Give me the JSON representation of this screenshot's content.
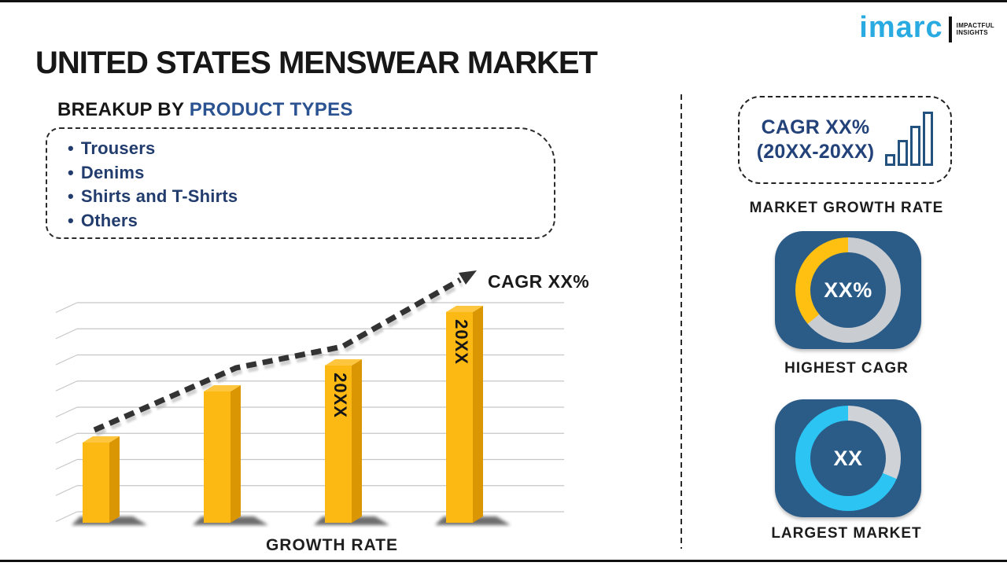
{
  "header": {
    "title": "UNITED STATES MENSWEAR MARKET",
    "logo": {
      "brand": "imarc",
      "tagline": [
        "IMPACTFUL",
        "INSIGHTS"
      ],
      "brand_color": "#29ABE2"
    }
  },
  "breakup": {
    "heading": {
      "prefix": "BREAKUP BY",
      "accent": "PRODUCT TYPES"
    },
    "accent_color": "#2B5291",
    "items_color": "#223C6D",
    "items": [
      "Trousers",
      "Denims",
      "Shirts and T-Shirts",
      "Others"
    ]
  },
  "chart_data": {
    "type": "bar",
    "title": "",
    "xlabel": "GROWTH RATE",
    "ylabel": "",
    "categories": [
      "",
      "",
      "20XX",
      "20XX"
    ],
    "bar_labels": [
      "",
      "",
      "20XX",
      "20XX"
    ],
    "values": [
      102,
      167,
      200,
      268
    ],
    "units": "relative bar heights in px; no numeric axis shown",
    "gridlines": true,
    "style": "3d-bars",
    "bar_color": "#FCB813",
    "bar_color_top": "#FDC63E",
    "bar_color_side": "#DB9604",
    "trend": {
      "label": "CAGR XX%",
      "style": "dashed-arrow",
      "direction": "up"
    }
  },
  "panel": {
    "cagr_box": {
      "line1": "CAGR XX%",
      "line2": "(20XX-20XX)",
      "text_color": "#24427A"
    },
    "market_growth_rate_label": "MARKET GROWTH RATE",
    "highest_cagr": {
      "value": "XX%",
      "label": "HIGHEST CAGR",
      "card_color": "#2B5B87",
      "donut_segments": [
        {
          "color": "#C9CCD1",
          "from": 0,
          "to": 230
        },
        {
          "color": "#FFC012",
          "from": 230,
          "to": 360
        }
      ]
    },
    "largest_market": {
      "value": "XX",
      "label": "LARGEST MARKET",
      "card_color": "#2B5B87",
      "donut_segments": [
        {
          "color": "#CFD2D6",
          "from": 0,
          "to": 113
        },
        {
          "color": "#2BC4F3",
          "from": 113,
          "to": 360
        }
      ]
    }
  }
}
